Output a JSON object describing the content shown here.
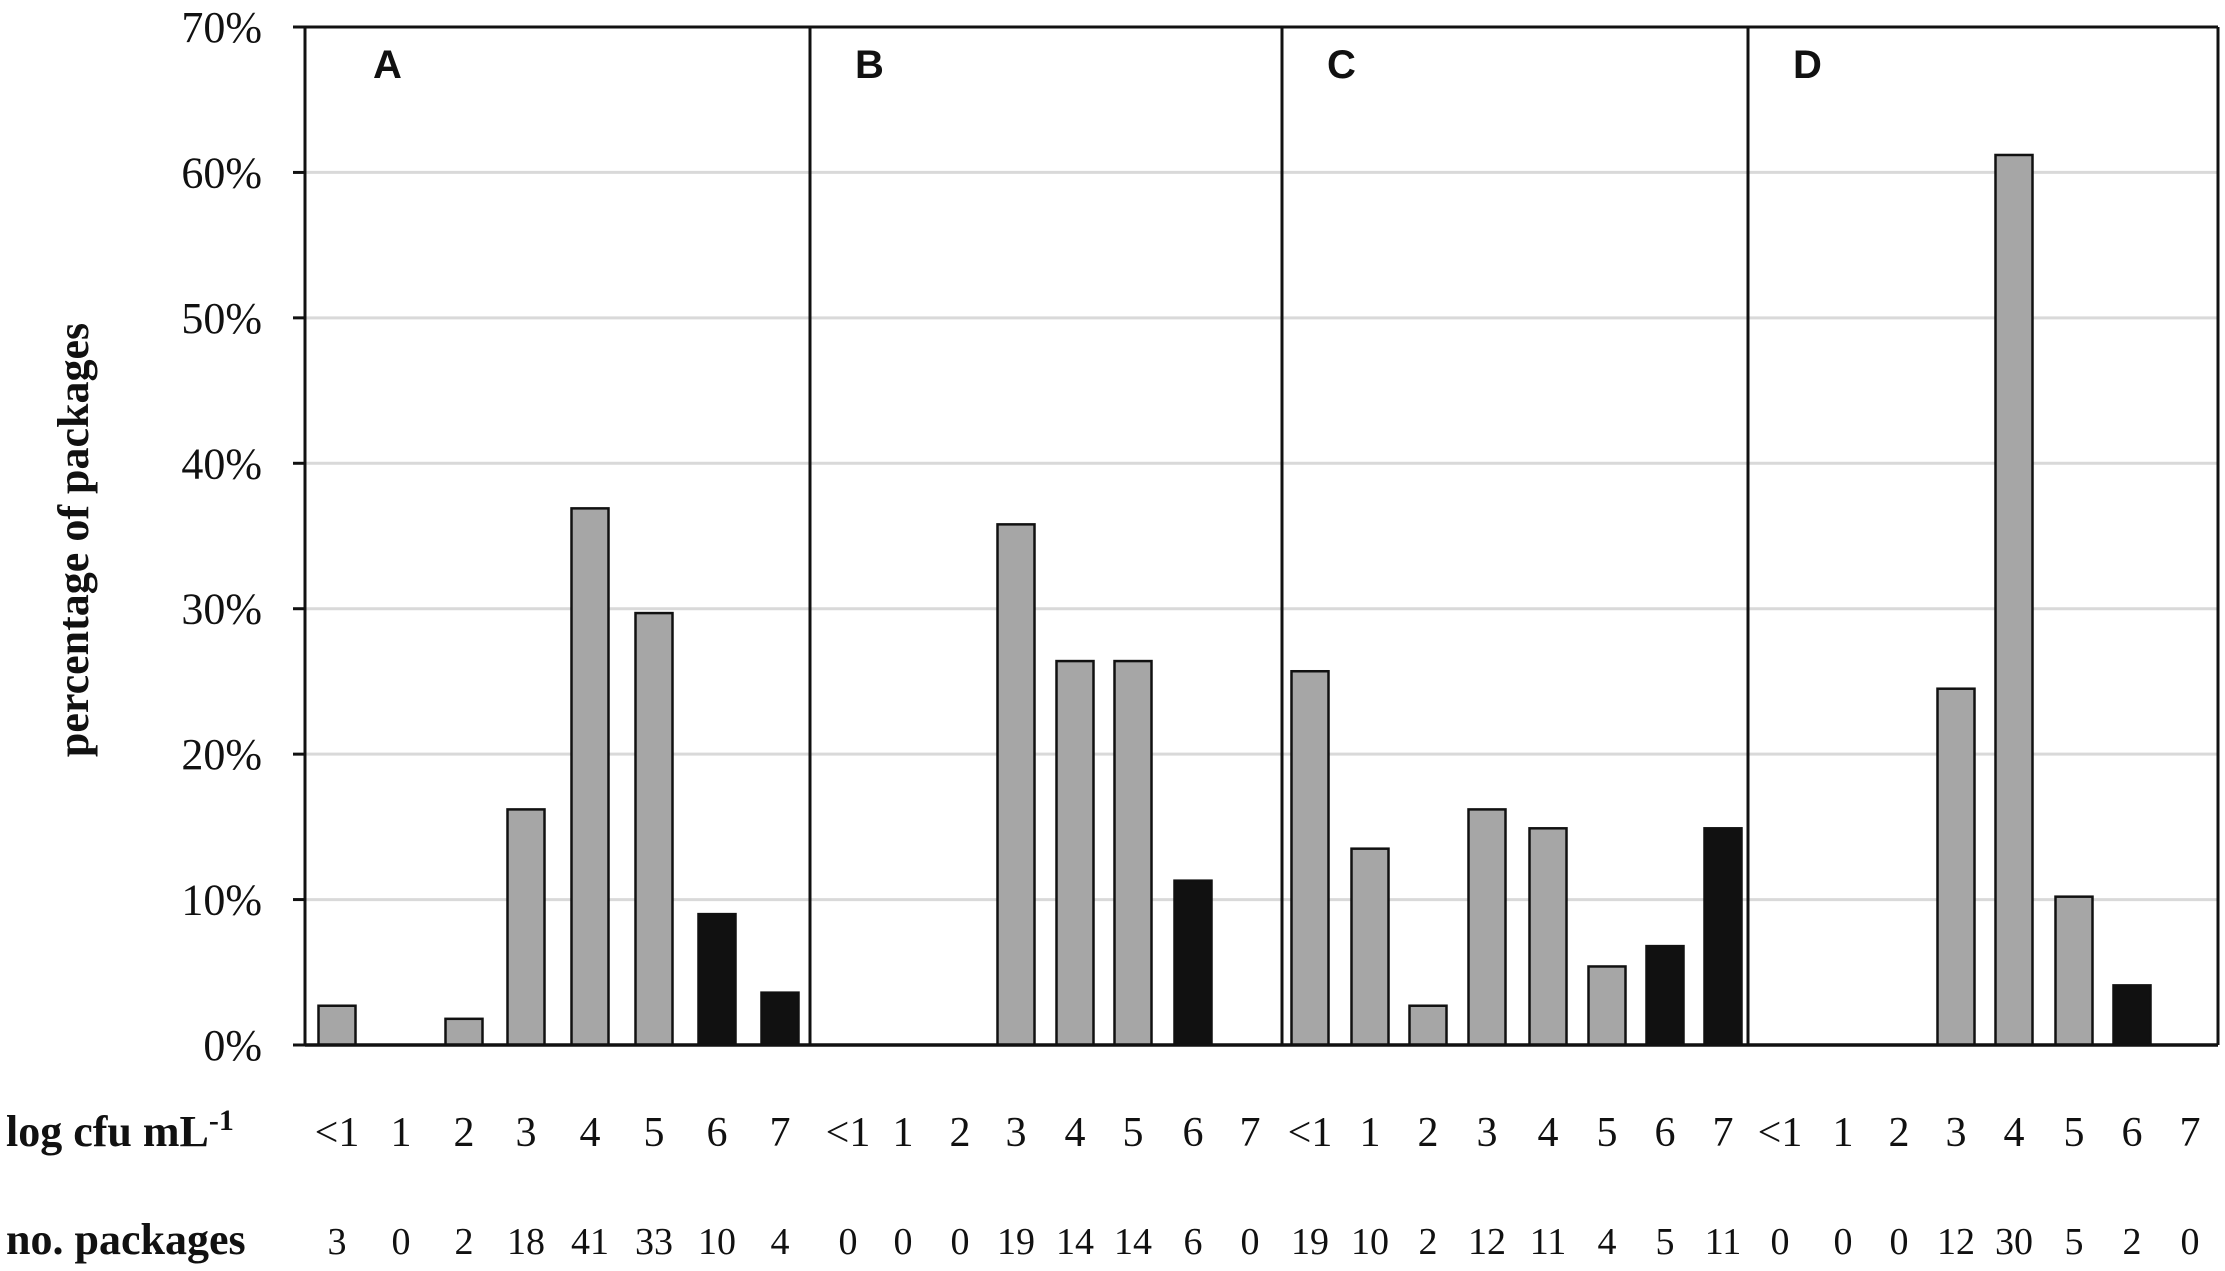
{
  "chart_data": {
    "type": "bar",
    "ylabel": "percentage of packages",
    "ylim": [
      0,
      70
    ],
    "yticks": [
      "0%",
      "10%",
      "20%",
      "30%",
      "40%",
      "50%",
      "60%",
      "70%"
    ],
    "grid": true,
    "categories": [
      "<1",
      "1",
      "2",
      "3",
      "4",
      "5",
      "6",
      "7"
    ],
    "x_row_label": "log cfu mL",
    "x_row_label_superscript": "-1",
    "count_row_label": "no. packages",
    "colors": {
      "gray": "#a6a6a6",
      "black": "#111111",
      "grid": "#d9d9d9"
    },
    "panels": [
      {
        "label": "A",
        "values": [
          2.7,
          0,
          1.8,
          16.2,
          36.9,
          29.7,
          9.0,
          3.6
        ],
        "counts": [
          "3",
          "0",
          "2",
          "18",
          "41",
          "33",
          "10",
          "4"
        ],
        "color_keys": [
          "gray",
          "gray",
          "gray",
          "gray",
          "gray",
          "gray",
          "black",
          "black"
        ]
      },
      {
        "label": "B",
        "values": [
          0,
          0,
          0,
          35.8,
          26.4,
          26.4,
          11.3,
          0
        ],
        "counts": [
          "0",
          "0",
          "0",
          "19",
          "14",
          "14",
          "6",
          "0"
        ],
        "color_keys": [
          "gray",
          "gray",
          "gray",
          "gray",
          "gray",
          "gray",
          "black",
          "black"
        ]
      },
      {
        "label": "C",
        "values": [
          25.7,
          13.5,
          2.7,
          16.2,
          14.9,
          5.4,
          6.8,
          14.9
        ],
        "counts": [
          "19",
          "10",
          "2",
          "12",
          "11",
          "4",
          "5",
          "11"
        ],
        "color_keys": [
          "gray",
          "gray",
          "gray",
          "gray",
          "gray",
          "gray",
          "black",
          "black"
        ]
      },
      {
        "label": "D",
        "values": [
          0,
          0,
          0,
          24.5,
          61.2,
          10.2,
          4.1,
          0
        ],
        "counts": [
          "0",
          "0",
          "0",
          "12",
          "30",
          "5",
          "2",
          "0"
        ],
        "color_keys": [
          "gray",
          "gray",
          "gray",
          "gray",
          "gray",
          "gray",
          "black",
          "black"
        ]
      }
    ]
  }
}
